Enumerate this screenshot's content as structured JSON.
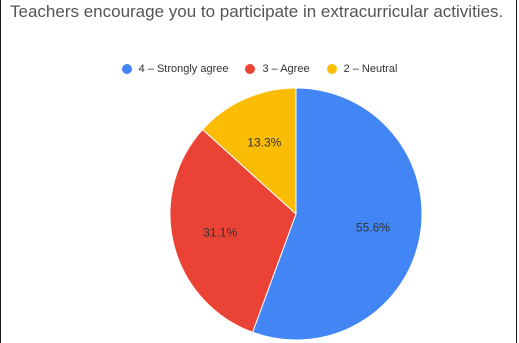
{
  "chart_data": {
    "type": "pie",
    "title": "Teachers encourage you to participate in extracurricular activities.",
    "legend_position": "top",
    "slices": [
      {
        "label": "4 – Strongly agree",
        "value": 55.6,
        "value_label": "55.6%",
        "color": "#4285f4"
      },
      {
        "label": "3 – Agree",
        "value": 31.1,
        "value_label": "31.1%",
        "color": "#ea4335"
      },
      {
        "label": "2 – Neutral",
        "value": 13.3,
        "value_label": "13.3%",
        "color": "#fbbc04"
      }
    ]
  }
}
